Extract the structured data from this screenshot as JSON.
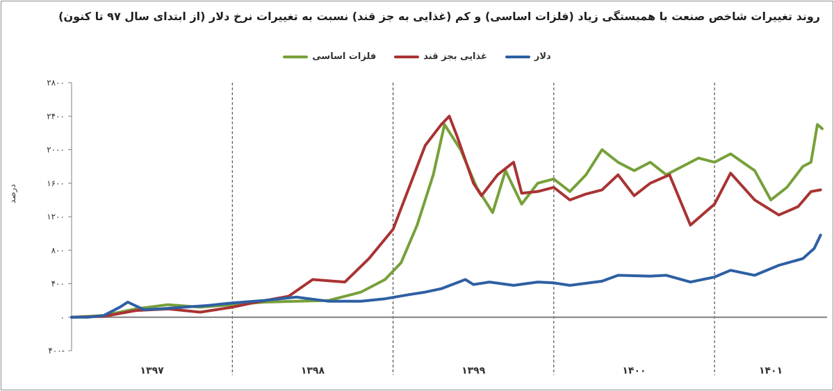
{
  "chart_data": {
    "type": "line",
    "title": "روند تغییرات شاخص صنعت با همبستگی زیاد (فلزات اساسی) و کم (غذایی به جز قند) نسبت به تغییرات نرخ دلار (از ابتدای سال ۹۷ تا کنون)",
    "ylabel": "درصد",
    "xlabel": "",
    "ylim": [
      -400,
      2800
    ],
    "yticks": [
      -400,
      0,
      400,
      800,
      1200,
      1600,
      2000,
      2400,
      2800
    ],
    "ytick_labels": [
      "۴۰۰-",
      "۰",
      "۴۰۰",
      "۸۰۰",
      "۱۲۰۰",
      "۱۶۰۰",
      "۲۰۰۰",
      "۲۴۰۰",
      "۲۸۰۰"
    ],
    "x_unit": "year (Solar Hijri)",
    "xlim": [
      1397,
      1401.7
    ],
    "categories": [
      "۱۳۹۷",
      "۱۳۹۸",
      "۱۳۹۹",
      "۱۴۰۰",
      "۱۴۰۱"
    ],
    "year_boundaries": [
      1398,
      1399,
      1400,
      1401
    ],
    "grid": false,
    "legend_position": "top-center",
    "series": [
      {
        "name": "دلار",
        "color": "#2e5fa3",
        "x": [
          1397.0,
          1397.1,
          1397.2,
          1397.3,
          1397.35,
          1397.45,
          1397.55,
          1397.7,
          1397.85,
          1397.95,
          1398.0,
          1398.2,
          1398.4,
          1398.6,
          1398.8,
          1398.95,
          1399.1,
          1399.2,
          1399.3,
          1399.45,
          1399.5,
          1399.6,
          1399.75,
          1399.9,
          1400.0,
          1400.1,
          1400.3,
          1400.4,
          1400.6,
          1400.7,
          1400.85,
          1401.0,
          1401.1,
          1401.25,
          1401.4,
          1401.55,
          1401.62,
          1401.66
        ],
        "y": [
          0,
          0,
          20,
          120,
          180,
          90,
          100,
          120,
          140,
          160,
          170,
          200,
          240,
          190,
          190,
          220,
          270,
          300,
          340,
          450,
          390,
          420,
          380,
          420,
          410,
          380,
          430,
          500,
          490,
          500,
          420,
          480,
          560,
          500,
          620,
          700,
          820,
          980
        ]
      },
      {
        "name": "غذایی بجز قند",
        "color": "#a93333",
        "x": [
          1397.0,
          1397.2,
          1397.4,
          1397.6,
          1397.8,
          1398.0,
          1398.15,
          1398.35,
          1398.5,
          1398.7,
          1398.85,
          1399.0,
          1399.1,
          1399.2,
          1399.3,
          1399.35,
          1399.4,
          1399.5,
          1399.55,
          1399.65,
          1399.75,
          1399.8,
          1399.9,
          1400.0,
          1400.1,
          1400.2,
          1400.3,
          1400.4,
          1400.5,
          1400.6,
          1400.72,
          1400.85,
          1401.0,
          1401.1,
          1401.25,
          1401.4,
          1401.52,
          1401.6,
          1401.66
        ],
        "y": [
          0,
          10,
          80,
          100,
          60,
          120,
          180,
          250,
          450,
          420,
          700,
          1050,
          1550,
          2050,
          2300,
          2400,
          2150,
          1600,
          1450,
          1700,
          1850,
          1480,
          1500,
          1550,
          1400,
          1470,
          1520,
          1700,
          1450,
          1600,
          1700,
          1100,
          1350,
          1720,
          1400,
          1220,
          1320,
          1500,
          1520
        ]
      },
      {
        "name": "فلزات اساسی",
        "color": "#77a03a",
        "x": [
          1397.0,
          1397.2,
          1397.4,
          1397.6,
          1397.8,
          1398.0,
          1398.2,
          1398.4,
          1398.6,
          1398.8,
          1398.95,
          1399.05,
          1399.15,
          1399.25,
          1399.32,
          1399.42,
          1399.52,
          1399.62,
          1399.7,
          1399.8,
          1399.9,
          1400.0,
          1400.1,
          1400.2,
          1400.3,
          1400.4,
          1400.5,
          1400.6,
          1400.7,
          1400.8,
          1400.9,
          1401.0,
          1401.1,
          1401.25,
          1401.35,
          1401.45,
          1401.55,
          1401.6,
          1401.64,
          1401.67
        ],
        "y": [
          0,
          20,
          100,
          150,
          120,
          150,
          180,
          190,
          200,
          300,
          450,
          650,
          1100,
          1700,
          2300,
          2000,
          1550,
          1250,
          1750,
          1350,
          1600,
          1650,
          1500,
          1700,
          2000,
          1850,
          1750,
          1850,
          1700,
          1800,
          1900,
          1850,
          1950,
          1750,
          1400,
          1550,
          1800,
          1850,
          2300,
          2250
        ]
      }
    ]
  }
}
